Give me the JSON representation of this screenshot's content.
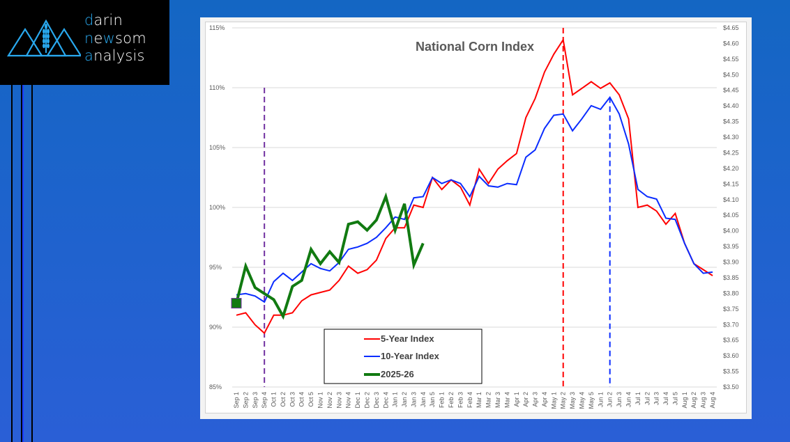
{
  "brand": {
    "lines": [
      {
        "accent": "d",
        "rest": "arin"
      },
      {
        "accent": "n",
        "rest_a": "e",
        "accent2": "w",
        "rest": "som"
      },
      {
        "accent": "a",
        "rest": "nalysis"
      }
    ],
    "name": "darin newsom analysis"
  },
  "colors": {
    "five_year": "#ff0000",
    "ten_year": "#0a2cff",
    "current": "#117a11",
    "marker_sep4": "#7030a0",
    "marker_may2": "#ff0000",
    "marker_jun2": "#0a2cff",
    "logo_accent": "#29a9ef"
  },
  "chart_data": {
    "type": "line",
    "title": "National Corn Index",
    "xlabel": "",
    "ylabel": "",
    "ylim": [
      85,
      115
    ],
    "y_ticks": [
      "85%",
      "90%",
      "95%",
      "100%",
      "105%",
      "110%",
      "115%"
    ],
    "y_tick_values": [
      85,
      90,
      95,
      100,
      105,
      110,
      115
    ],
    "y2_ticks": [
      "$3.50",
      "$3.55",
      "$3.60",
      "$3.65",
      "$3.70",
      "$3.75",
      "$3.80",
      "$3.85",
      "$3.90",
      "$3.95",
      "$4.00",
      "$4.05",
      "$4.10",
      "$4.15",
      "$4.20",
      "$4.25",
      "$4.30",
      "$4.35",
      "$4.40",
      "$4.45",
      "$4.50",
      "$4.55",
      "$4.60",
      "$4.65"
    ],
    "y2lim": [
      3.5,
      4.65
    ],
    "grid": true,
    "legend_position": "bottom-left",
    "categories": [
      "Sep 1",
      "Sep 2",
      "Sep 3",
      "Sep 4",
      "Oct 1",
      "Oct 2",
      "Oct 3",
      "Oct 4",
      "Oct 5",
      "Nov 1",
      "Nov 2",
      "Nov 3",
      "Nov 4",
      "Dec 1",
      "Dec 2",
      "Dec 3",
      "Dec 4",
      "Jan 1",
      "Jan 2",
      "Jan 3",
      "Jan 4",
      "Jan 5",
      "Feb 1",
      "Feb 2",
      "Feb 3",
      "Feb 4",
      "Mar 1",
      "Mar 2",
      "Mar 3",
      "Mar 4",
      "Apr 1",
      "Apr 2",
      "Apr 3",
      "Apr 4",
      "May 1",
      "May 2",
      "May 3",
      "May 4",
      "May 5",
      "Jun 1",
      "Jun 2",
      "Jun 3",
      "Jun 4",
      "Jul 1",
      "Jul 2",
      "Jul 3",
      "Jul 4",
      "Jul 5",
      "Aug 1",
      "Aug 2",
      "Aug 3",
      "Aug 4"
    ],
    "series": [
      {
        "name": "5-Year Index",
        "color_key": "five_year",
        "values": [
          91.0,
          91.2,
          90.2,
          89.5,
          91.0,
          91.0,
          91.2,
          92.2,
          92.7,
          92.9,
          93.1,
          93.9,
          95.1,
          94.5,
          94.8,
          95.6,
          97.4,
          98.3,
          98.3,
          100.2,
          100.0,
          102.5,
          101.5,
          102.3,
          101.7,
          100.2,
          103.2,
          102.0,
          103.2,
          103.9,
          104.5,
          107.5,
          109.1,
          111.3,
          112.8,
          114.0,
          109.4,
          109.95,
          110.5,
          109.95,
          110.4,
          109.4,
          107.4,
          100.0,
          100.2,
          99.7,
          98.6,
          99.5,
          97.0,
          95.3,
          94.8,
          94.3
        ]
      },
      {
        "name": "10-Year Index",
        "color_key": "ten_year",
        "values": [
          92.7,
          92.8,
          92.6,
          92.1,
          93.8,
          94.5,
          93.9,
          94.6,
          95.3,
          94.9,
          94.7,
          95.4,
          96.5,
          96.7,
          97.0,
          97.5,
          98.3,
          99.2,
          99.0,
          100.8,
          100.9,
          102.5,
          102.0,
          102.3,
          102.0,
          100.9,
          102.6,
          101.8,
          101.7,
          102.0,
          101.9,
          104.2,
          104.8,
          106.6,
          107.7,
          107.8,
          106.4,
          107.4,
          108.5,
          108.2,
          109.2,
          107.8,
          105.3,
          101.5,
          100.9,
          100.7,
          99.1,
          99.0,
          97.0,
          95.3,
          94.5,
          94.6
        ]
      },
      {
        "name": "2025-26",
        "color_key": "current",
        "values": [
          92.0,
          95.1,
          93.3,
          92.8,
          92.3,
          90.9,
          93.4,
          93.9,
          96.5,
          95.3,
          96.3,
          95.4,
          98.6,
          98.8,
          98.1,
          98.95,
          100.9,
          98.1,
          100.3,
          95.2,
          97.0
        ]
      }
    ],
    "markers": [
      {
        "name": "current-start-marker",
        "category": "Sep 1",
        "value": 92.0,
        "shape": "square"
      },
      {
        "name": "vertical-marker-sep4",
        "category": "Sep 4",
        "from": 85,
        "to": 110,
        "color_key": "marker_sep4",
        "style": "dashed"
      },
      {
        "name": "vertical-marker-may2",
        "category": "May 2",
        "from": 85,
        "to": 115,
        "color_key": "marker_may2",
        "style": "dashed"
      },
      {
        "name": "vertical-marker-jun2",
        "category": "Jun 2",
        "from": 85,
        "to": 109.2,
        "color_key": "marker_jun2",
        "style": "dashed"
      }
    ],
    "legend": [
      "5-Year Index",
      "10-Year Index",
      "2025-26"
    ]
  }
}
